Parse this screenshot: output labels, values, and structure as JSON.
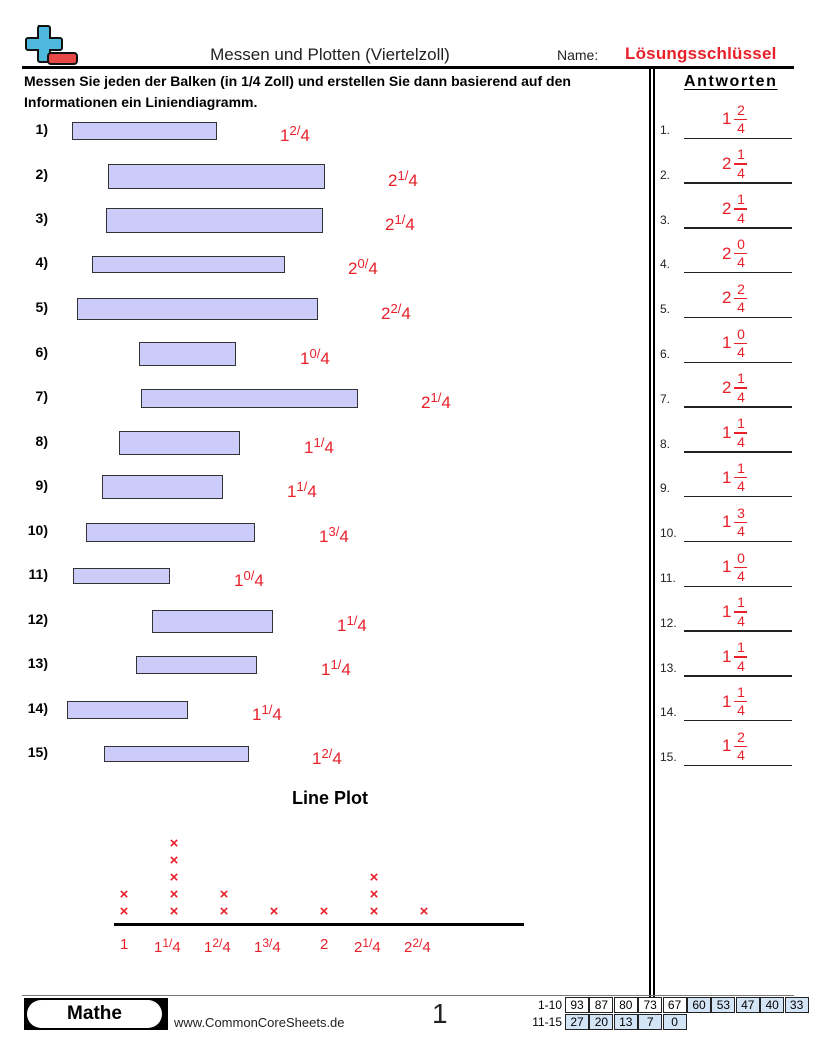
{
  "header": {
    "title": "Messen und Plotten (Viertelzoll)",
    "name_label": "Name:",
    "name_value": "Lösungsschlüssel",
    "instructions": "Messen Sie jeden der Balken (in 1/4 Zoll) und erstellen Sie dann basierend auf den Informationen ein Liniendiagramm."
  },
  "colors": {
    "answer_red": "#e8202a",
    "bar_fill": "#ccccfa",
    "logo_blue": "#4fb8df",
    "logo_red": "#e94848",
    "score_highlight": "#d4e4f7"
  },
  "problems": [
    {
      "label": "1)",
      "answer_whole": "1",
      "answer_frac": "2/4"
    },
    {
      "label": "2)",
      "answer_whole": "2",
      "answer_frac": "1/4"
    },
    {
      "label": "3)",
      "answer_whole": "2",
      "answer_frac": "1/4"
    },
    {
      "label": "4)",
      "answer_whole": "2",
      "answer_frac": "0/4"
    },
    {
      "label": "5)",
      "answer_whole": "2",
      "answer_frac": "2/4"
    },
    {
      "label": "6)",
      "answer_whole": "1",
      "answer_frac": "0/4"
    },
    {
      "label": "7)",
      "answer_whole": "2",
      "answer_frac": "1/4"
    },
    {
      "label": "8)",
      "answer_whole": "1",
      "answer_frac": "1/4"
    },
    {
      "label": "9)",
      "answer_whole": "1",
      "answer_frac": "1/4"
    },
    {
      "label": "10)",
      "answer_whole": "1",
      "answer_frac": "3/4"
    },
    {
      "label": "11)",
      "answer_whole": "1",
      "answer_frac": "0/4"
    },
    {
      "label": "12)",
      "answer_whole": "1",
      "answer_frac": "1/4"
    },
    {
      "label": "13)",
      "answer_whole": "1",
      "answer_frac": "1/4"
    },
    {
      "label": "14)",
      "answer_whole": "1",
      "answer_frac": "1/4"
    },
    {
      "label": "15)",
      "answer_whole": "1",
      "answer_frac": "2/4"
    }
  ],
  "answer_key": {
    "heading": "Antworten",
    "items": [
      {
        "num": "1.",
        "whole": "1",
        "numer": "2",
        "denom": "4"
      },
      {
        "num": "2.",
        "whole": "2",
        "numer": "1",
        "denom": "4"
      },
      {
        "num": "3.",
        "whole": "2",
        "numer": "1",
        "denom": "4"
      },
      {
        "num": "4.",
        "whole": "2",
        "numer": "0",
        "denom": "4"
      },
      {
        "num": "5.",
        "whole": "2",
        "numer": "2",
        "denom": "4"
      },
      {
        "num": "6.",
        "whole": "1",
        "numer": "0",
        "denom": "4"
      },
      {
        "num": "7.",
        "whole": "2",
        "numer": "1",
        "denom": "4"
      },
      {
        "num": "8.",
        "whole": "1",
        "numer": "1",
        "denom": "4"
      },
      {
        "num": "9.",
        "whole": "1",
        "numer": "1",
        "denom": "4"
      },
      {
        "num": "10.",
        "whole": "1",
        "numer": "3",
        "denom": "4"
      },
      {
        "num": "11.",
        "whole": "1",
        "numer": "0",
        "denom": "4"
      },
      {
        "num": "12.",
        "whole": "1",
        "numer": "1",
        "denom": "4"
      },
      {
        "num": "13.",
        "whole": "1",
        "numer": "1",
        "denom": "4"
      },
      {
        "num": "14.",
        "whole": "1",
        "numer": "1",
        "denom": "4"
      },
      {
        "num": "15.",
        "whole": "1",
        "numer": "2",
        "denom": "4"
      }
    ]
  },
  "line_plot": {
    "title": "Line Plot",
    "marker": "×",
    "ticks": [
      {
        "whole": "1",
        "frac": "",
        "count": 2
      },
      {
        "whole": "1",
        "frac": "1/4",
        "count": 5
      },
      {
        "whole": "1",
        "frac": "2/4",
        "count": 2
      },
      {
        "whole": "1",
        "frac": "3/4",
        "count": 1
      },
      {
        "whole": "2",
        "frac": "",
        "count": 1
      },
      {
        "whole": "2",
        "frac": "1/4",
        "count": 3
      },
      {
        "whole": "2",
        "frac": "2/4",
        "count": 1
      }
    ]
  },
  "chart_data": {
    "type": "scatter",
    "title": "Line Plot",
    "categories": [
      "1",
      "1 1/4",
      "1 2/4",
      "1 3/4",
      "2",
      "2 1/4",
      "2 2/4"
    ],
    "values": [
      2,
      5,
      2,
      1,
      1,
      3,
      1
    ],
    "xlabel": "",
    "ylabel": "",
    "marker": "x"
  },
  "footer": {
    "subject": "Mathe",
    "website": "www.CommonCoreSheets.de",
    "page": "1",
    "score_rows": [
      {
        "label": "1-10",
        "cells": [
          "93",
          "87",
          "80",
          "73",
          "67",
          "60",
          "53",
          "47",
          "40",
          "33"
        ]
      },
      {
        "label": "11-15",
        "cells": [
          "27",
          "20",
          "13",
          "7",
          "0"
        ]
      }
    ]
  }
}
